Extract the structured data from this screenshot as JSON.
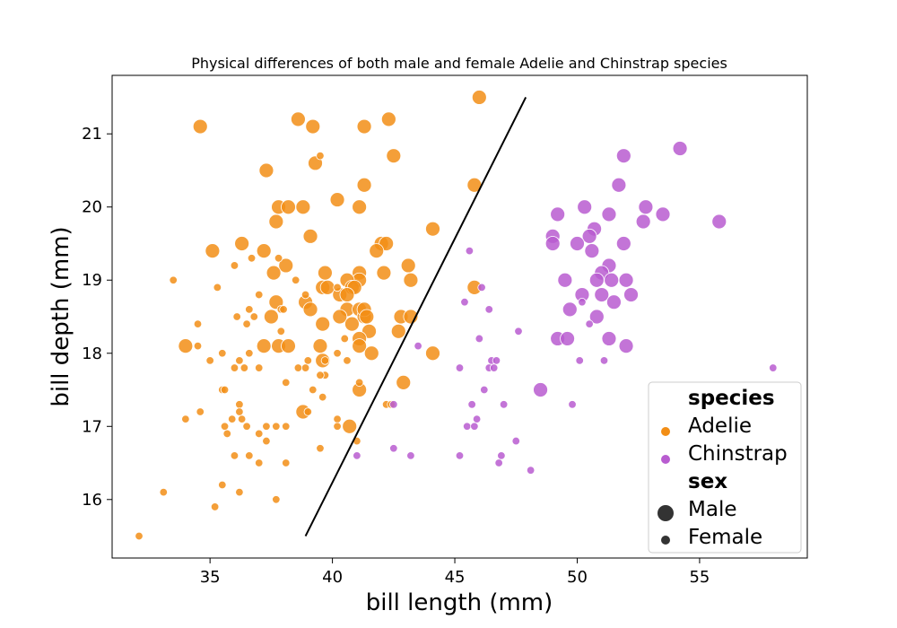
{
  "chart_data": {
    "type": "scatter",
    "title": "Physical differences of both male and female Adelie and Chinstrap species",
    "xlabel": "bill length (mm)",
    "ylabel": "bill depth (mm)",
    "xlim": [
      31,
      59.4
    ],
    "ylim": [
      15.2,
      21.8
    ],
    "xticks": [
      "35",
      "40",
      "45",
      "50",
      "55"
    ],
    "yticks": [
      "16",
      "17",
      "18",
      "19",
      "20",
      "21"
    ],
    "grid": false,
    "legend": {
      "placement": "lower-right",
      "species_title": "species",
      "sex_title": "sex",
      "species": [
        {
          "name": "Adelie",
          "color": "#f28e16"
        },
        {
          "name": "Chinstrap",
          "color": "#b85cd0"
        }
      ],
      "sex": [
        {
          "name": "Male"
        },
        {
          "name": "Female"
        }
      ],
      "marker_color": "#333333"
    },
    "divider_line": {
      "x": [
        38.9,
        47.9
      ],
      "y": [
        15.5,
        21.5
      ]
    },
    "series": [
      {
        "species": "Adelie",
        "sex": "Male",
        "points": [
          [
            34.6,
            21.1
          ],
          [
            38.6,
            21.2
          ],
          [
            39.2,
            21.1
          ],
          [
            41.3,
            21.1
          ],
          [
            42.3,
            21.2
          ],
          [
            46.0,
            21.5
          ],
          [
            37.3,
            20.5
          ],
          [
            39.3,
            20.6
          ],
          [
            42.5,
            20.7
          ],
          [
            41.3,
            20.3
          ],
          [
            45.8,
            20.3
          ],
          [
            37.8,
            20.0
          ],
          [
            38.2,
            20.0
          ],
          [
            38.8,
            20.0
          ],
          [
            40.2,
            20.1
          ],
          [
            41.1,
            20.0
          ],
          [
            37.7,
            19.8
          ],
          [
            36.3,
            19.5
          ],
          [
            35.1,
            19.4
          ],
          [
            37.2,
            19.4
          ],
          [
            39.1,
            19.6
          ],
          [
            42.0,
            19.5
          ],
          [
            42.2,
            19.5
          ],
          [
            41.8,
            19.4
          ],
          [
            44.1,
            19.7
          ],
          [
            38.1,
            19.2
          ],
          [
            43.1,
            19.2
          ],
          [
            37.6,
            19.1
          ],
          [
            39.7,
            19.1
          ],
          [
            41.1,
            19.1
          ],
          [
            42.1,
            19.1
          ],
          [
            43.2,
            19.0
          ],
          [
            41.1,
            19.0
          ],
          [
            40.6,
            19.0
          ],
          [
            40.8,
            18.9
          ],
          [
            39.6,
            18.9
          ],
          [
            40.9,
            18.9
          ],
          [
            45.8,
            18.9
          ],
          [
            39.8,
            18.9
          ],
          [
            40.3,
            18.8
          ],
          [
            37.7,
            18.7
          ],
          [
            38.9,
            18.7
          ],
          [
            40.6,
            18.6
          ],
          [
            41.1,
            18.6
          ],
          [
            39.1,
            18.6
          ],
          [
            41.3,
            18.5
          ],
          [
            40.3,
            18.5
          ],
          [
            42.8,
            18.5
          ],
          [
            43.2,
            18.5
          ],
          [
            37.5,
            18.5
          ],
          [
            39.6,
            18.4
          ],
          [
            40.8,
            18.4
          ],
          [
            41.5,
            18.3
          ],
          [
            42.7,
            18.3
          ],
          [
            41.1,
            18.2
          ],
          [
            34.0,
            18.1
          ],
          [
            37.2,
            18.1
          ],
          [
            37.8,
            18.1
          ],
          [
            38.2,
            18.1
          ],
          [
            39.5,
            18.1
          ],
          [
            41.1,
            18.1
          ],
          [
            41.6,
            18.0
          ],
          [
            44.1,
            18.0
          ],
          [
            39.6,
            17.9
          ],
          [
            42.9,
            17.6
          ],
          [
            41.1,
            17.5
          ],
          [
            38.8,
            17.2
          ],
          [
            40.7,
            17.0
          ],
          [
            41.3,
            18.6
          ],
          [
            40.6,
            18.8
          ],
          [
            41.4,
            18.5
          ]
        ]
      },
      {
        "species": "Adelie",
        "sex": "Female",
        "points": [
          [
            39.5,
            20.7
          ],
          [
            33.5,
            19.0
          ],
          [
            35.3,
            18.9
          ],
          [
            36.0,
            19.2
          ],
          [
            36.7,
            19.3
          ],
          [
            37.0,
            18.8
          ],
          [
            37.8,
            19.3
          ],
          [
            38.5,
            19.0
          ],
          [
            38.9,
            18.8
          ],
          [
            40.2,
            18.9
          ],
          [
            36.6,
            18.6
          ],
          [
            36.8,
            18.5
          ],
          [
            37.9,
            18.6
          ],
          [
            38.0,
            18.6
          ],
          [
            36.1,
            18.5
          ],
          [
            36.5,
            18.4
          ],
          [
            34.5,
            18.4
          ],
          [
            37.9,
            18.3
          ],
          [
            40.5,
            18.2
          ],
          [
            34.5,
            18.1
          ],
          [
            36.2,
            17.9
          ],
          [
            35.5,
            18.0
          ],
          [
            36.6,
            18.0
          ],
          [
            39.0,
            17.9
          ],
          [
            35.0,
            17.9
          ],
          [
            38.6,
            17.8
          ],
          [
            36.4,
            17.8
          ],
          [
            36.0,
            17.8
          ],
          [
            37.0,
            17.8
          ],
          [
            39.7,
            17.7
          ],
          [
            39.7,
            17.9
          ],
          [
            40.2,
            18.0
          ],
          [
            40.6,
            17.9
          ],
          [
            38.1,
            17.6
          ],
          [
            39.5,
            17.7
          ],
          [
            38.9,
            17.8
          ],
          [
            35.5,
            17.5
          ],
          [
            35.6,
            17.5
          ],
          [
            41.1,
            17.6
          ],
          [
            39.2,
            17.5
          ],
          [
            35.9,
            17.1
          ],
          [
            36.2,
            17.3
          ],
          [
            36.3,
            17.1
          ],
          [
            36.2,
            17.2
          ],
          [
            34.6,
            17.2
          ],
          [
            39.6,
            17.4
          ],
          [
            37.3,
            17.0
          ],
          [
            36.5,
            17.0
          ],
          [
            37.7,
            17.0
          ],
          [
            38.1,
            17.0
          ],
          [
            40.2,
            17.1
          ],
          [
            40.2,
            17.0
          ],
          [
            42.2,
            17.3
          ],
          [
            42.4,
            17.3
          ],
          [
            34.0,
            17.1
          ],
          [
            39.0,
            17.2
          ],
          [
            35.7,
            16.9
          ],
          [
            37.0,
            16.9
          ],
          [
            37.3,
            16.8
          ],
          [
            35.6,
            17.0
          ],
          [
            39.5,
            16.7
          ],
          [
            36.6,
            16.6
          ],
          [
            36.0,
            16.6
          ],
          [
            41.0,
            16.8
          ],
          [
            37.0,
            16.5
          ],
          [
            38.1,
            16.5
          ],
          [
            35.5,
            16.2
          ],
          [
            36.2,
            16.1
          ],
          [
            33.1,
            16.1
          ],
          [
            35.2,
            15.9
          ],
          [
            37.7,
            16.0
          ],
          [
            32.1,
            15.5
          ]
        ]
      },
      {
        "species": "Chinstrap",
        "sex": "Male",
        "points": [
          [
            54.2,
            20.8
          ],
          [
            51.9,
            20.7
          ],
          [
            51.7,
            20.3
          ],
          [
            50.3,
            20.0
          ],
          [
            52.8,
            20.0
          ],
          [
            49.2,
            19.9
          ],
          [
            51.3,
            19.9
          ],
          [
            53.5,
            19.9
          ],
          [
            52.7,
            19.8
          ],
          [
            55.8,
            19.8
          ],
          [
            50.7,
            19.7
          ],
          [
            49.0,
            19.6
          ],
          [
            50.5,
            19.6
          ],
          [
            49.0,
            19.5
          ],
          [
            50.0,
            19.5
          ],
          [
            51.9,
            19.5
          ],
          [
            50.6,
            19.4
          ],
          [
            51.3,
            19.2
          ],
          [
            51.0,
            19.1
          ],
          [
            49.5,
            19.0
          ],
          [
            50.8,
            19.0
          ],
          [
            51.4,
            19.0
          ],
          [
            52.0,
            19.0
          ],
          [
            50.2,
            18.8
          ],
          [
            51.0,
            18.8
          ],
          [
            52.2,
            18.8
          ],
          [
            51.5,
            18.7
          ],
          [
            49.7,
            18.6
          ],
          [
            50.8,
            18.5
          ],
          [
            49.2,
            18.2
          ],
          [
            49.6,
            18.2
          ],
          [
            51.3,
            18.2
          ],
          [
            52.0,
            18.1
          ],
          [
            48.5,
            17.5
          ]
        ]
      },
      {
        "species": "Chinstrap",
        "sex": "Female",
        "points": [
          [
            45.6,
            19.4
          ],
          [
            46.1,
            18.9
          ],
          [
            45.4,
            18.7
          ],
          [
            46.4,
            18.6
          ],
          [
            50.2,
            18.7
          ],
          [
            47.6,
            18.3
          ],
          [
            46.0,
            18.2
          ],
          [
            43.5,
            18.1
          ],
          [
            46.5,
            17.9
          ],
          [
            46.7,
            17.9
          ],
          [
            45.2,
            17.8
          ],
          [
            46.4,
            17.8
          ],
          [
            46.6,
            17.8
          ],
          [
            50.1,
            17.9
          ],
          [
            51.1,
            17.9
          ],
          [
            58.0,
            17.8
          ],
          [
            46.2,
            17.5
          ],
          [
            45.7,
            17.3
          ],
          [
            47.0,
            17.3
          ],
          [
            49.8,
            17.3
          ],
          [
            42.5,
            17.3
          ],
          [
            45.9,
            17.1
          ],
          [
            45.5,
            17.0
          ],
          [
            45.8,
            17.0
          ],
          [
            47.5,
            16.8
          ],
          [
            42.5,
            16.7
          ],
          [
            43.2,
            16.6
          ],
          [
            45.2,
            16.6
          ],
          [
            46.9,
            16.6
          ],
          [
            46.8,
            16.5
          ],
          [
            48.1,
            16.4
          ],
          [
            41.0,
            16.6
          ],
          [
            50.5,
            18.4
          ]
        ]
      }
    ]
  }
}
